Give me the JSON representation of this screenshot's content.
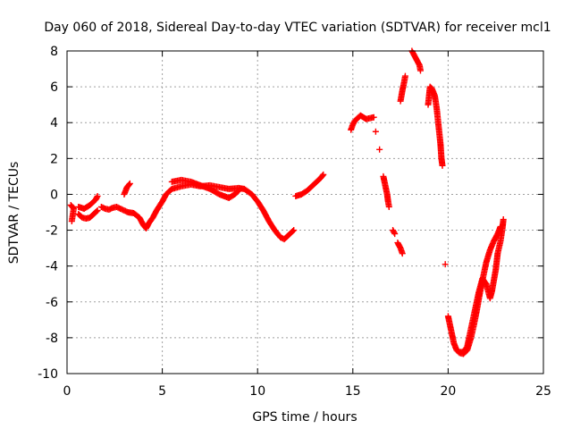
{
  "chart_data": {
    "type": "scatter",
    "title": "Day 060 of 2018, Sidereal Day-to-day VTEC variation (SDTVAR) for receiver mcl1",
    "xlabel": "GPS time / hours",
    "ylabel": "SDTVAR / TECUs",
    "xlim": [
      0,
      25
    ],
    "ylim": [
      -10,
      8
    ],
    "xticks": [
      0,
      5,
      10,
      15,
      20,
      25
    ],
    "yticks": [
      -10,
      -8,
      -6,
      -4,
      -2,
      0,
      2,
      4,
      6,
      8
    ],
    "grid": true,
    "marker": "plus",
    "series": [
      {
        "name": "SDTVAR",
        "color": "#ff0000",
        "segments": [
          [
            [
              0.2,
              -0.6
            ],
            [
              0.35,
              -0.8
            ],
            [
              0.25,
              -1.5
            ]
          ],
          [
            [
              0.6,
              -0.7
            ],
            [
              0.9,
              -0.8
            ],
            [
              1.2,
              -0.6
            ],
            [
              1.5,
              -0.3
            ],
            [
              1.6,
              -0.1
            ]
          ],
          [
            [
              0.6,
              -1.1
            ],
            [
              0.8,
              -1.3
            ],
            [
              1.0,
              -1.35
            ],
            [
              1.2,
              -1.3
            ],
            [
              1.4,
              -1.1
            ],
            [
              1.6,
              -0.9
            ]
          ],
          [
            [
              1.8,
              -0.7
            ],
            [
              2.0,
              -0.8
            ],
            [
              2.2,
              -0.85
            ],
            [
              2.4,
              -0.75
            ],
            [
              2.6,
              -0.7
            ],
            [
              2.8,
              -0.8
            ],
            [
              3.0,
              -0.9
            ],
            [
              3.2,
              -1.0
            ],
            [
              3.5,
              -1.05
            ],
            [
              3.8,
              -1.3
            ],
            [
              4.0,
              -1.7
            ],
            [
              4.15,
              -1.9
            ],
            [
              4.3,
              -1.6
            ],
            [
              4.5,
              -1.3
            ],
            [
              4.7,
              -0.9
            ],
            [
              5.0,
              -0.4
            ],
            [
              5.2,
              0.0
            ],
            [
              5.5,
              0.3
            ],
            [
              6.0,
              0.45
            ],
            [
              6.5,
              0.55
            ],
            [
              7.0,
              0.45
            ],
            [
              7.5,
              0.5
            ],
            [
              8.0,
              0.4
            ],
            [
              8.5,
              0.3
            ],
            [
              9.0,
              0.35
            ],
            [
              9.3,
              0.3
            ],
            [
              9.7,
              0.0
            ],
            [
              10.0,
              -0.4
            ],
            [
              10.3,
              -0.9
            ],
            [
              10.6,
              -1.5
            ],
            [
              10.9,
              -2.0
            ],
            [
              11.2,
              -2.4
            ],
            [
              11.4,
              -2.5
            ],
            [
              11.7,
              -2.2
            ],
            [
              11.9,
              -2.0
            ]
          ],
          [
            [
              3.0,
              0.0
            ],
            [
              3.15,
              0.4
            ],
            [
              3.3,
              0.6
            ]
          ],
          [
            [
              5.5,
              0.7
            ],
            [
              6.0,
              0.8
            ],
            [
              6.5,
              0.7
            ],
            [
              7.0,
              0.5
            ],
            [
              7.5,
              0.3
            ],
            [
              8.0,
              0.0
            ],
            [
              8.5,
              -0.2
            ],
            [
              8.8,
              0.0
            ],
            [
              9.0,
              0.2
            ]
          ],
          [
            [
              12.0,
              -0.1
            ],
            [
              12.3,
              0.0
            ],
            [
              12.6,
              0.2
            ],
            [
              13.0,
              0.6
            ],
            [
              13.3,
              0.9
            ],
            [
              13.45,
              1.1
            ]
          ],
          [
            [
              14.9,
              3.6
            ],
            [
              15.0,
              3.9
            ],
            [
              15.1,
              4.1
            ],
            [
              15.25,
              4.25
            ],
            [
              15.4,
              4.4
            ],
            [
              15.55,
              4.3
            ],
            [
              15.7,
              4.2
            ],
            [
              15.9,
              4.25
            ],
            [
              16.1,
              4.3
            ]
          ],
          [
            [
              16.2,
              3.5
            ]
          ],
          [
            [
              16.4,
              2.5
            ]
          ],
          [
            [
              16.6,
              1.0
            ],
            [
              16.7,
              0.5
            ],
            [
              16.8,
              0.0
            ],
            [
              16.85,
              -0.4
            ],
            [
              16.9,
              -0.7
            ]
          ],
          [
            [
              17.1,
              -2.0
            ],
            [
              17.2,
              -2.2
            ]
          ],
          [
            [
              17.35,
              -2.7
            ],
            [
              17.5,
              -3.0
            ],
            [
              17.6,
              -3.3
            ]
          ],
          [
            [
              17.5,
              5.2
            ],
            [
              17.6,
              5.8
            ],
            [
              17.7,
              6.3
            ],
            [
              17.75,
              6.6
            ]
          ],
          [
            [
              18.1,
              8.0
            ],
            [
              18.2,
              7.8
            ],
            [
              18.35,
              7.5
            ],
            [
              18.5,
              7.2
            ],
            [
              18.55,
              6.9
            ]
          ],
          [
            [
              18.95,
              5.0
            ],
            [
              19.05,
              6.0
            ],
            [
              19.15,
              5.9
            ],
            [
              19.3,
              5.5
            ],
            [
              19.4,
              4.8
            ],
            [
              19.5,
              3.8
            ],
            [
              19.6,
              2.8
            ],
            [
              19.65,
              2.0
            ],
            [
              19.7,
              1.6
            ]
          ],
          [
            [
              19.85,
              -3.9
            ]
          ],
          [
            [
              20.0,
              -6.8
            ],
            [
              20.1,
              -7.3
            ],
            [
              20.2,
              -7.8
            ],
            [
              20.3,
              -8.3
            ],
            [
              20.45,
              -8.7
            ],
            [
              20.6,
              -8.85
            ],
            [
              20.8,
              -8.9
            ],
            [
              21.0,
              -8.7
            ],
            [
              21.2,
              -8.0
            ],
            [
              21.35,
              -7.3
            ],
            [
              21.5,
              -6.5
            ],
            [
              21.65,
              -5.6
            ],
            [
              21.8,
              -4.8
            ],
            [
              22.0,
              -3.8
            ],
            [
              22.2,
              -3.1
            ],
            [
              22.4,
              -2.6
            ],
            [
              22.6,
              -2.2
            ],
            [
              22.75,
              -1.8
            ]
          ],
          [
            [
              20.6,
              -8.8
            ],
            [
              20.8,
              -8.8
            ],
            [
              21.0,
              -8.5
            ],
            [
              21.2,
              -7.5
            ],
            [
              21.4,
              -6.5
            ],
            [
              21.6,
              -5.5
            ],
            [
              21.8,
              -4.7
            ],
            [
              22.0,
              -5.0
            ],
            [
              22.2,
              -5.8
            ],
            [
              22.3,
              -5.4
            ],
            [
              22.5,
              -4.2
            ],
            [
              22.6,
              -3.3
            ],
            [
              22.75,
              -2.6
            ],
            [
              22.85,
              -1.9
            ],
            [
              22.9,
              -1.4
            ]
          ]
        ]
      }
    ]
  }
}
